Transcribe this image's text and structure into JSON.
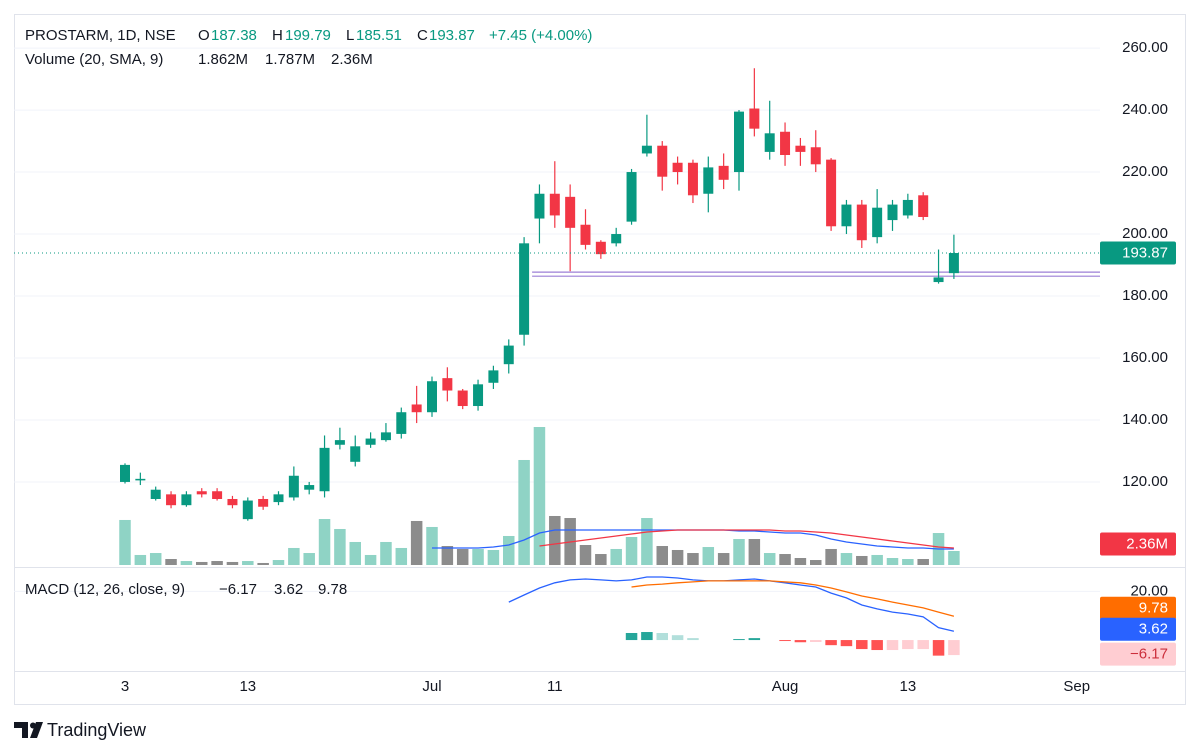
{
  "brand": "TradingView",
  "chart_data": [
    {
      "type": "candlestick",
      "title": "PROSTARM, 1D, NSE",
      "ohlc_labels": [
        "O",
        "H",
        "L",
        "C"
      ],
      "change": "+7.45 (+4.00%)",
      "categories": [
        "3",
        null,
        null,
        null,
        null,
        null,
        null,
        null,
        "13",
        null,
        null,
        null,
        null,
        null,
        null,
        null,
        null,
        null,
        null,
        null,
        "Jul",
        null,
        null,
        null,
        null,
        null,
        null,
        null,
        "11",
        null,
        null,
        null,
        null,
        null,
        null,
        null,
        null,
        null,
        null,
        null,
        null,
        null,
        null,
        "Aug",
        null,
        null,
        null,
        null,
        null,
        null,
        null,
        "13",
        null,
        null,
        null,
        null,
        null,
        null,
        null,
        null,
        null,
        null,
        "Sep"
      ],
      "open": [
        120,
        120.5,
        114.5,
        116,
        112.5,
        117,
        117,
        114.5,
        108,
        114.5,
        113.5,
        115,
        117.5,
        117,
        132,
        126.5,
        132,
        133.5,
        135.5,
        145,
        142.5,
        153.5,
        149.5,
        144.5,
        152,
        158,
        167.5,
        205,
        213,
        212,
        203,
        197.5,
        197,
        204,
        226,
        228.5,
        223,
        223,
        213,
        222,
        220,
        240.5,
        226.5,
        233,
        228.5,
        228,
        224,
        202.5,
        209.5,
        199,
        204.5,
        206,
        212.5,
        184.5,
        187.38,
        null,
        null,
        null,
        null,
        null,
        null,
        null,
        null
      ],
      "high": [
        126,
        123,
        118.5,
        117,
        117,
        118,
        118,
        115.5,
        115,
        115.5,
        117,
        125,
        120,
        135,
        137.5,
        135,
        136,
        139,
        144,
        151,
        154,
        157,
        150,
        153,
        157.5,
        166,
        199,
        216,
        223.5,
        216,
        208,
        198,
        202,
        221,
        238.5,
        230,
        225,
        224,
        225,
        226,
        240,
        253.5,
        243,
        236,
        231,
        233.5,
        224.5,
        211,
        211,
        214.5,
        211,
        213,
        213.5,
        195,
        199.79,
        null,
        null,
        null,
        null,
        null,
        null,
        null,
        null
      ],
      "low": [
        119.5,
        119,
        114,
        111.5,
        112,
        115,
        114,
        111.5,
        107.5,
        111,
        112.5,
        114,
        116,
        115,
        130.5,
        125,
        131,
        133,
        134,
        139,
        141,
        146,
        143.5,
        143,
        150,
        155,
        164,
        197,
        202,
        188,
        195,
        192,
        196,
        203,
        225,
        214,
        216,
        210,
        207,
        214.5,
        214,
        231.5,
        224,
        222,
        222,
        220,
        201,
        200,
        195.5,
        197,
        201,
        205,
        204.5,
        184,
        185.51,
        null,
        null,
        null,
        null,
        null,
        null,
        null,
        null
      ],
      "close": [
        125.5,
        121,
        117.5,
        112.5,
        116,
        116,
        114.5,
        112.5,
        114,
        112,
        116,
        122,
        119,
        131,
        133.5,
        131.5,
        134,
        136,
        142.5,
        142.5,
        152.5,
        149.5,
        144.5,
        151.5,
        156,
        164,
        197,
        213,
        206,
        202,
        196.5,
        193.5,
        200,
        220,
        228.5,
        218.5,
        220,
        212.5,
        221.5,
        217.5,
        239.5,
        234,
        232.5,
        225.5,
        226.5,
        222.5,
        202.5,
        209.5,
        198,
        208.5,
        209.5,
        211,
        205.5,
        186,
        193.87,
        null,
        null,
        null,
        null,
        null,
        null,
        null,
        null
      ],
      "up_color": "#089981",
      "down_color": "#f23645",
      "ylim": [
        93.2,
        271
      ],
      "yticks": [
        {
          "value": 120,
          "label": "120.00"
        },
        {
          "value": 140,
          "label": "140.00"
        },
        {
          "value": 160,
          "label": "160.00"
        },
        {
          "value": 180,
          "label": "180.00"
        },
        {
          "value": 200,
          "label": "200.00"
        },
        {
          "value": 220,
          "label": "220.00"
        },
        {
          "value": 240,
          "label": "240.00"
        },
        {
          "value": 260,
          "label": "260.00"
        }
      ],
      "grid": true,
      "hlines": [
        {
          "value": 187.7
        },
        {
          "value": 186.4
        }
      ],
      "hline_color": "#9c7fd6",
      "hline_start": 26
    },
    {
      "type": "volume",
      "title": "Volume (20, SMA, 9)",
      "legend": [
        {
          "value": 1862000,
          "label": "1.862M",
          "color": "#089981"
        },
        {
          "value": 1787000,
          "label": "1.787M",
          "color": "#2962ff"
        },
        {
          "value": 2360000,
          "label": "2.36M",
          "color": "#f23645"
        }
      ],
      "values": [
        7590000,
        1690000,
        2020000,
        1010000,
        670000,
        510000,
        670000,
        510000,
        670000,
        340000,
        840000,
        2870000,
        2020000,
        7750000,
        6070000,
        3880000,
        1690000,
        3880000,
        2870000,
        7420000,
        6410000,
        3200000,
        2700000,
        2700000,
        2530000,
        4890000,
        17700000,
        23260000,
        8260000,
        7920000,
        3370000,
        1850000,
        2700000,
        4720000,
        7920000,
        3200000,
        2530000,
        2020000,
        3030000,
        2020000,
        4380000,
        4380000,
        2020000,
        1850000,
        1180000,
        840000,
        2700000,
        2020000,
        1520000,
        1690000,
        1180000,
        1010000,
        1010000,
        5390000,
        2360000,
        null,
        null,
        null,
        null,
        null,
        null,
        null,
        null
      ],
      "value_labels": [
        null,
        null,
        null,
        null,
        null,
        null,
        null,
        null,
        null,
        null,
        null,
        null,
        null,
        null,
        null,
        null,
        null,
        null,
        null,
        null,
        null,
        null,
        null,
        null,
        null,
        null,
        null,
        null,
        null,
        null,
        null,
        null,
        null,
        null,
        null,
        null,
        null,
        null,
        null,
        null,
        null,
        null,
        null,
        null,
        null,
        null,
        null,
        null,
        null,
        null,
        null,
        null,
        null,
        null,
        "2.36M",
        null,
        null,
        null,
        null,
        null,
        null,
        null,
        null
      ],
      "up_color": "#8fd3c5",
      "down_color": "#8c8c8c",
      "label_color": "#f23645",
      "series": [
        {
          "color": "#2962ff",
          "values": [
            null,
            null,
            null,
            null,
            null,
            null,
            null,
            null,
            null,
            null,
            null,
            null,
            null,
            null,
            null,
            null,
            null,
            null,
            null,
            null,
            2870000,
            2870000,
            2870000,
            2870000,
            3030000,
            3370000,
            4210000,
            5390000,
            5900000,
            5900000,
            5900000,
            5900000,
            5900000,
            5900000,
            5900000,
            5900000,
            5900000,
            5900000,
            5900000,
            5900000,
            5730000,
            5730000,
            5560000,
            5390000,
            5390000,
            5060000,
            4380000,
            3880000,
            3540000,
            3200000,
            3030000,
            2870000,
            2870000,
            2700000,
            2700000,
            null,
            null,
            null,
            null,
            null,
            null,
            null,
            null
          ]
        },
        {
          "color": "#f23645",
          "values": [
            null,
            null,
            null,
            null,
            null,
            null,
            null,
            null,
            null,
            null,
            null,
            null,
            null,
            null,
            null,
            null,
            null,
            null,
            null,
            null,
            null,
            null,
            null,
            null,
            null,
            null,
            null,
            3200000,
            3540000,
            3880000,
            4210000,
            4550000,
            4890000,
            5230000,
            5560000,
            5730000,
            5900000,
            5900000,
            5900000,
            5900000,
            5900000,
            5900000,
            5900000,
            5730000,
            5730000,
            5560000,
            5390000,
            5060000,
            4720000,
            4380000,
            4050000,
            3710000,
            3370000,
            3030000,
            2870000,
            null,
            null,
            null,
            null,
            null,
            null,
            null,
            null
          ]
        }
      ]
    },
    {
      "type": "macd",
      "title": "MACD (12, 26, close, 9)",
      "ylim": [
        -12.3,
        29.6
      ],
      "yticks": [
        {
          "value": 20,
          "label": "20.00"
        }
      ],
      "series": [
        {
          "color": "#2962ff",
          "values": [
            null,
            null,
            null,
            null,
            null,
            null,
            null,
            null,
            null,
            null,
            null,
            null,
            null,
            null,
            null,
            null,
            null,
            null,
            null,
            null,
            null,
            null,
            null,
            null,
            null,
            15.6,
            18.5,
            21.4,
            23.5,
            24.7,
            25.1,
            24.7,
            24.3,
            24.7,
            25.9,
            25.9,
            25.5,
            24.7,
            24.3,
            24.3,
            24.7,
            25.1,
            24.3,
            23.5,
            22.6,
            21.8,
            19.3,
            17.3,
            14.4,
            12.8,
            11.5,
            10.7,
            9.5,
            5.1,
            3.62,
            null,
            null,
            null,
            null,
            null,
            null,
            null,
            null
          ]
        },
        {
          "color": "#ff6d00",
          "values": [
            null,
            null,
            null,
            null,
            null,
            null,
            null,
            null,
            null,
            null,
            null,
            null,
            null,
            null,
            null,
            null,
            null,
            null,
            null,
            null,
            null,
            null,
            null,
            null,
            null,
            null,
            null,
            null,
            null,
            null,
            null,
            null,
            null,
            21.8,
            22.6,
            23.0,
            23.5,
            23.9,
            24.3,
            24.3,
            24.3,
            24.3,
            24.3,
            23.9,
            23.5,
            22.6,
            21.4,
            19.8,
            18.1,
            16.9,
            15.6,
            14.4,
            13.2,
            11.5,
            9.78,
            null,
            null,
            null,
            null,
            null,
            null,
            null,
            null
          ]
        }
      ],
      "histogram": {
        "values": [
          null,
          null,
          null,
          null,
          null,
          null,
          null,
          null,
          null,
          null,
          null,
          null,
          null,
          null,
          null,
          null,
          null,
          null,
          null,
          null,
          null,
          null,
          null,
          null,
          null,
          null,
          null,
          null,
          null,
          null,
          null,
          null,
          null,
          2.9,
          3.3,
          2.9,
          2.0,
          0.8,
          0,
          0,
          0.4,
          0.8,
          0,
          -0.4,
          -0.9,
          -0.8,
          -2.1,
          -2.5,
          -3.7,
          -4.1,
          -4.1,
          -3.7,
          -3.7,
          -6.4,
          -6.17,
          null,
          null,
          null,
          null,
          null,
          null,
          null,
          null
        ],
        "value_labels": [
          null,
          null,
          null,
          null,
          null,
          null,
          null,
          null,
          null,
          null,
          null,
          null,
          null,
          null,
          null,
          null,
          null,
          null,
          null,
          null,
          null,
          null,
          null,
          null,
          null,
          null,
          null,
          null,
          null,
          null,
          null,
          null,
          null,
          null,
          null,
          null,
          null,
          null,
          null,
          null,
          null,
          null,
          null,
          null,
          null,
          null,
          null,
          null,
          null,
          null,
          null,
          null,
          null,
          null,
          "−6.17",
          null,
          null,
          null,
          null,
          null,
          null,
          null,
          null
        ],
        "colors": {
          "up_rising": "#26a69a",
          "up_falling": "#b2dfdb",
          "down_falling": "#ff5252",
          "down_rising": "#ffcdd2"
        }
      }
    }
  ]
}
